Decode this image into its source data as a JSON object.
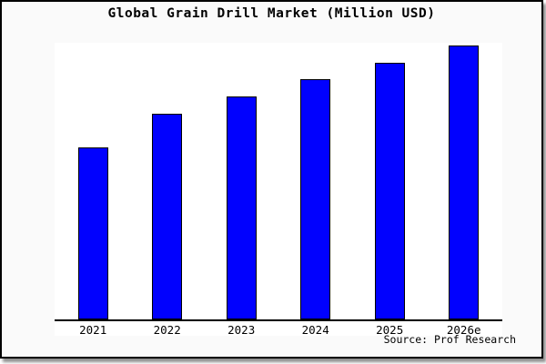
{
  "title": "Global Grain Drill Market (Million USD)",
  "source": "Source: Prof Research",
  "chart_data": {
    "type": "bar",
    "title": "Global Grain Drill Market (Million USD)",
    "categories": [
      "2021",
      "2022",
      "2023",
      "2024",
      "2025",
      "2026e"
    ],
    "values": [
      62.8,
      75.1,
      81.4,
      87.7,
      93.7,
      100
    ],
    "value_note": "relative bar heights as percent of tallest bar; chart shows no y-axis scale",
    "xlabel": "",
    "ylabel": "",
    "legend": "none",
    "grid": false,
    "y_axis_labels": "none",
    "bar_color": "#0101fe",
    "bar_border_color": "#000000",
    "plot_bg": "#ffffff",
    "figure_bg": "#fafafa",
    "frame_border_color": "#000000",
    "title_color": "#000000"
  }
}
